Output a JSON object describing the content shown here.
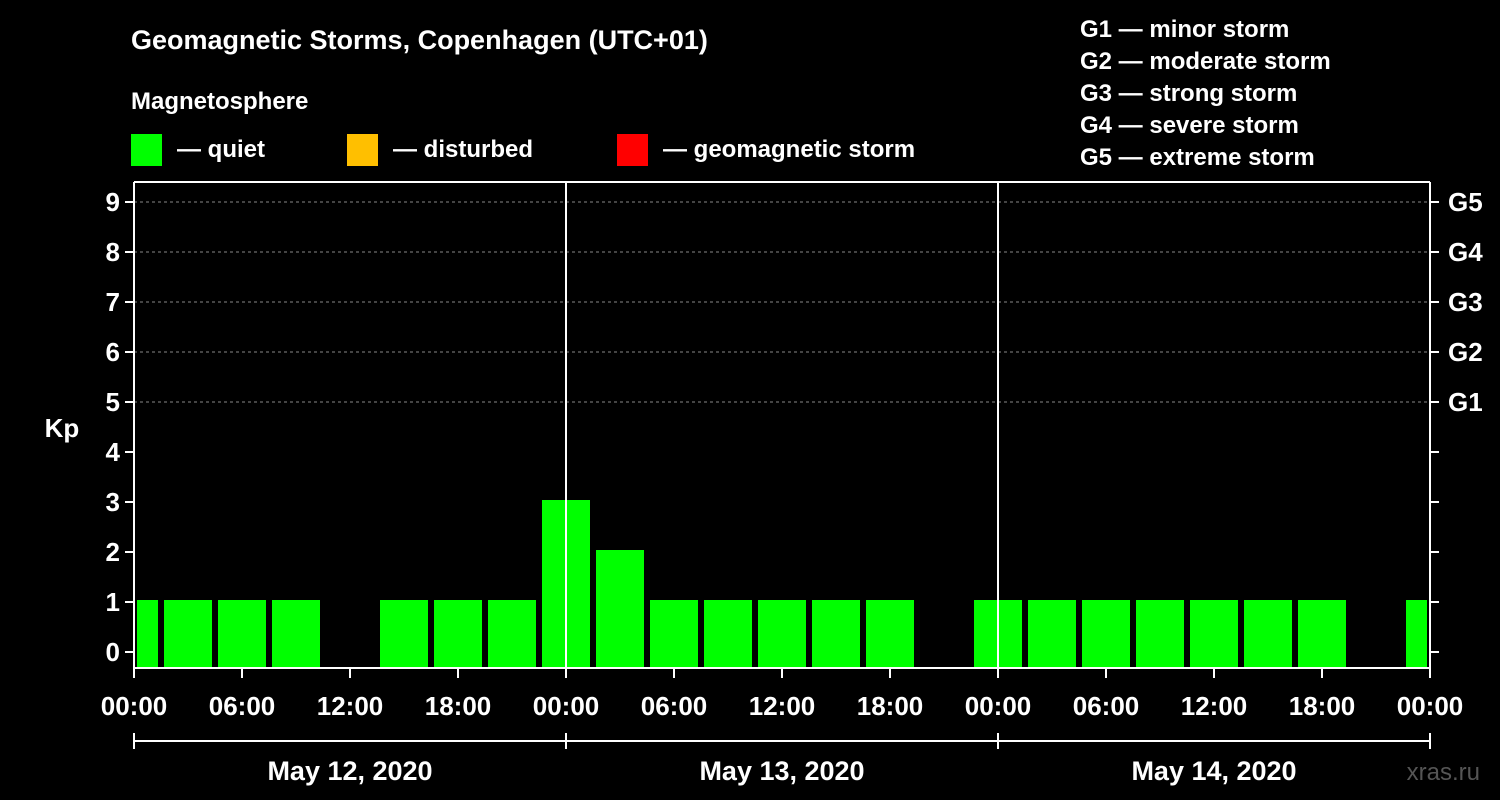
{
  "chart_data": {
    "type": "bar",
    "title": "Geomagnetic Storms, Copenhagen (UTC+01)",
    "subtitle": "Magnetosphere",
    "ylabel": "Kp",
    "ylim": [
      0,
      9
    ],
    "y_ticks": [
      "0",
      "1",
      "2",
      "3",
      "4",
      "5",
      "6",
      "7",
      "8",
      "9"
    ],
    "x_tick_labels": [
      "00:00",
      "06:00",
      "12:00",
      "18:00",
      "00:00",
      "06:00",
      "12:00",
      "18:00",
      "00:00",
      "06:00",
      "12:00",
      "18:00",
      "00:00"
    ],
    "days": [
      "May 12, 2020",
      "May 13, 2020",
      "May 14, 2020"
    ],
    "legend": [
      {
        "label": "— quiet",
        "color": "#00ff00"
      },
      {
        "label": "— disturbed",
        "color": "#ffbf00"
      },
      {
        "label": "— geomagnetic storm",
        "color": "#ff0000"
      }
    ],
    "g_scale": [
      {
        "level": "G1",
        "text": "G1 — minor storm",
        "kp": 5
      },
      {
        "level": "G2",
        "text": "G2 — moderate storm",
        "kp": 6
      },
      {
        "level": "G3",
        "text": "G3 — strong storm",
        "kp": 7
      },
      {
        "level": "G4",
        "text": "G4 — severe storm",
        "kp": 8
      },
      {
        "level": "G5",
        "text": "G5 — extreme storm",
        "kp": 9
      }
    ],
    "bars": [
      {
        "start_hour": 0,
        "end_hour": 1.5,
        "kp": 1
      },
      {
        "start_hour": 1.5,
        "end_hour": 4.5,
        "kp": 1
      },
      {
        "start_hour": 4.5,
        "end_hour": 7.5,
        "kp": 1
      },
      {
        "start_hour": 7.5,
        "end_hour": 10.5,
        "kp": 1
      },
      {
        "start_hour": 13.5,
        "end_hour": 16.5,
        "kp": 1
      },
      {
        "start_hour": 16.5,
        "end_hour": 19.5,
        "kp": 1
      },
      {
        "start_hour": 19.5,
        "end_hour": 22.5,
        "kp": 1
      },
      {
        "start_hour": 22.5,
        "end_hour": 25.5,
        "kp": 3
      },
      {
        "start_hour": 25.5,
        "end_hour": 28.5,
        "kp": 2
      },
      {
        "start_hour": 28.5,
        "end_hour": 31.5,
        "kp": 1
      },
      {
        "start_hour": 31.5,
        "end_hour": 34.5,
        "kp": 1
      },
      {
        "start_hour": 34.5,
        "end_hour": 37.5,
        "kp": 1
      },
      {
        "start_hour": 37.5,
        "end_hour": 40.5,
        "kp": 1
      },
      {
        "start_hour": 40.5,
        "end_hour": 43.5,
        "kp": 1
      },
      {
        "start_hour": 46.5,
        "end_hour": 49.5,
        "kp": 1
      },
      {
        "start_hour": 49.5,
        "end_hour": 52.5,
        "kp": 1
      },
      {
        "start_hour": 52.5,
        "end_hour": 55.5,
        "kp": 1
      },
      {
        "start_hour": 55.5,
        "end_hour": 58.5,
        "kp": 1
      },
      {
        "start_hour": 58.5,
        "end_hour": 61.5,
        "kp": 1
      },
      {
        "start_hour": 61.5,
        "end_hour": 64.5,
        "kp": 1
      },
      {
        "start_hour": 64.5,
        "end_hour": 67.5,
        "kp": 1
      },
      {
        "start_hour": 70.5,
        "end_hour": 72,
        "kp": 1
      }
    ],
    "watermark": "xras.ru"
  }
}
